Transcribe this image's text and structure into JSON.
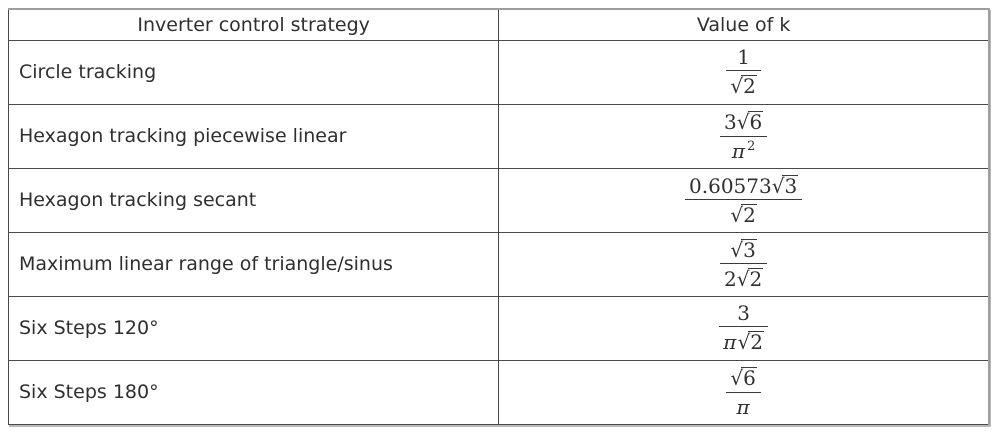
{
  "table": {
    "headers": [
      "Inverter control strategy",
      "Value of k"
    ],
    "text_color": "#2f2f2f",
    "border_color": "#4a4a4a",
    "rows": [
      {
        "strategy": "Circle tracking",
        "k_text": "1 / √2",
        "k": {
          "numerator": [
            {
              "type": "num",
              "text": "1"
            }
          ],
          "denominator": [
            {
              "type": "sqrt",
              "text": "2"
            }
          ]
        }
      },
      {
        "strategy": "Hexagon tracking piecewise linear",
        "k_text": "3√6 / π²",
        "k": {
          "numerator": [
            {
              "type": "num",
              "text": "3"
            },
            {
              "type": "sqrt",
              "text": "6"
            }
          ],
          "denominator": [
            {
              "type": "var",
              "text": "π",
              "sup": "2"
            }
          ]
        }
      },
      {
        "strategy": "Hexagon tracking secant",
        "k_text": "0.60573√3 / √2",
        "k": {
          "numerator": [
            {
              "type": "num",
              "text": "0.60573"
            },
            {
              "type": "sqrt",
              "text": "3"
            }
          ],
          "denominator": [
            {
              "type": "sqrt",
              "text": "2"
            }
          ]
        }
      },
      {
        "strategy": "Maximum linear range of triangle/sinus",
        "k_text": "√3 / 2√2",
        "k": {
          "numerator": [
            {
              "type": "sqrt",
              "text": "3"
            }
          ],
          "denominator": [
            {
              "type": "num",
              "text": "2"
            },
            {
              "type": "sqrt",
              "text": "2"
            }
          ]
        }
      },
      {
        "strategy": "Six Steps 120°",
        "k_text": "3 / π√2",
        "k": {
          "numerator": [
            {
              "type": "num",
              "text": "3"
            }
          ],
          "denominator": [
            {
              "type": "var",
              "text": "π"
            },
            {
              "type": "sqrt",
              "text": "2"
            }
          ]
        }
      },
      {
        "strategy": "Six Steps 180°",
        "k_text": "√6 / π",
        "k": {
          "numerator": [
            {
              "type": "sqrt",
              "text": "6"
            }
          ],
          "denominator": [
            {
              "type": "var",
              "text": "π"
            }
          ]
        }
      }
    ]
  }
}
